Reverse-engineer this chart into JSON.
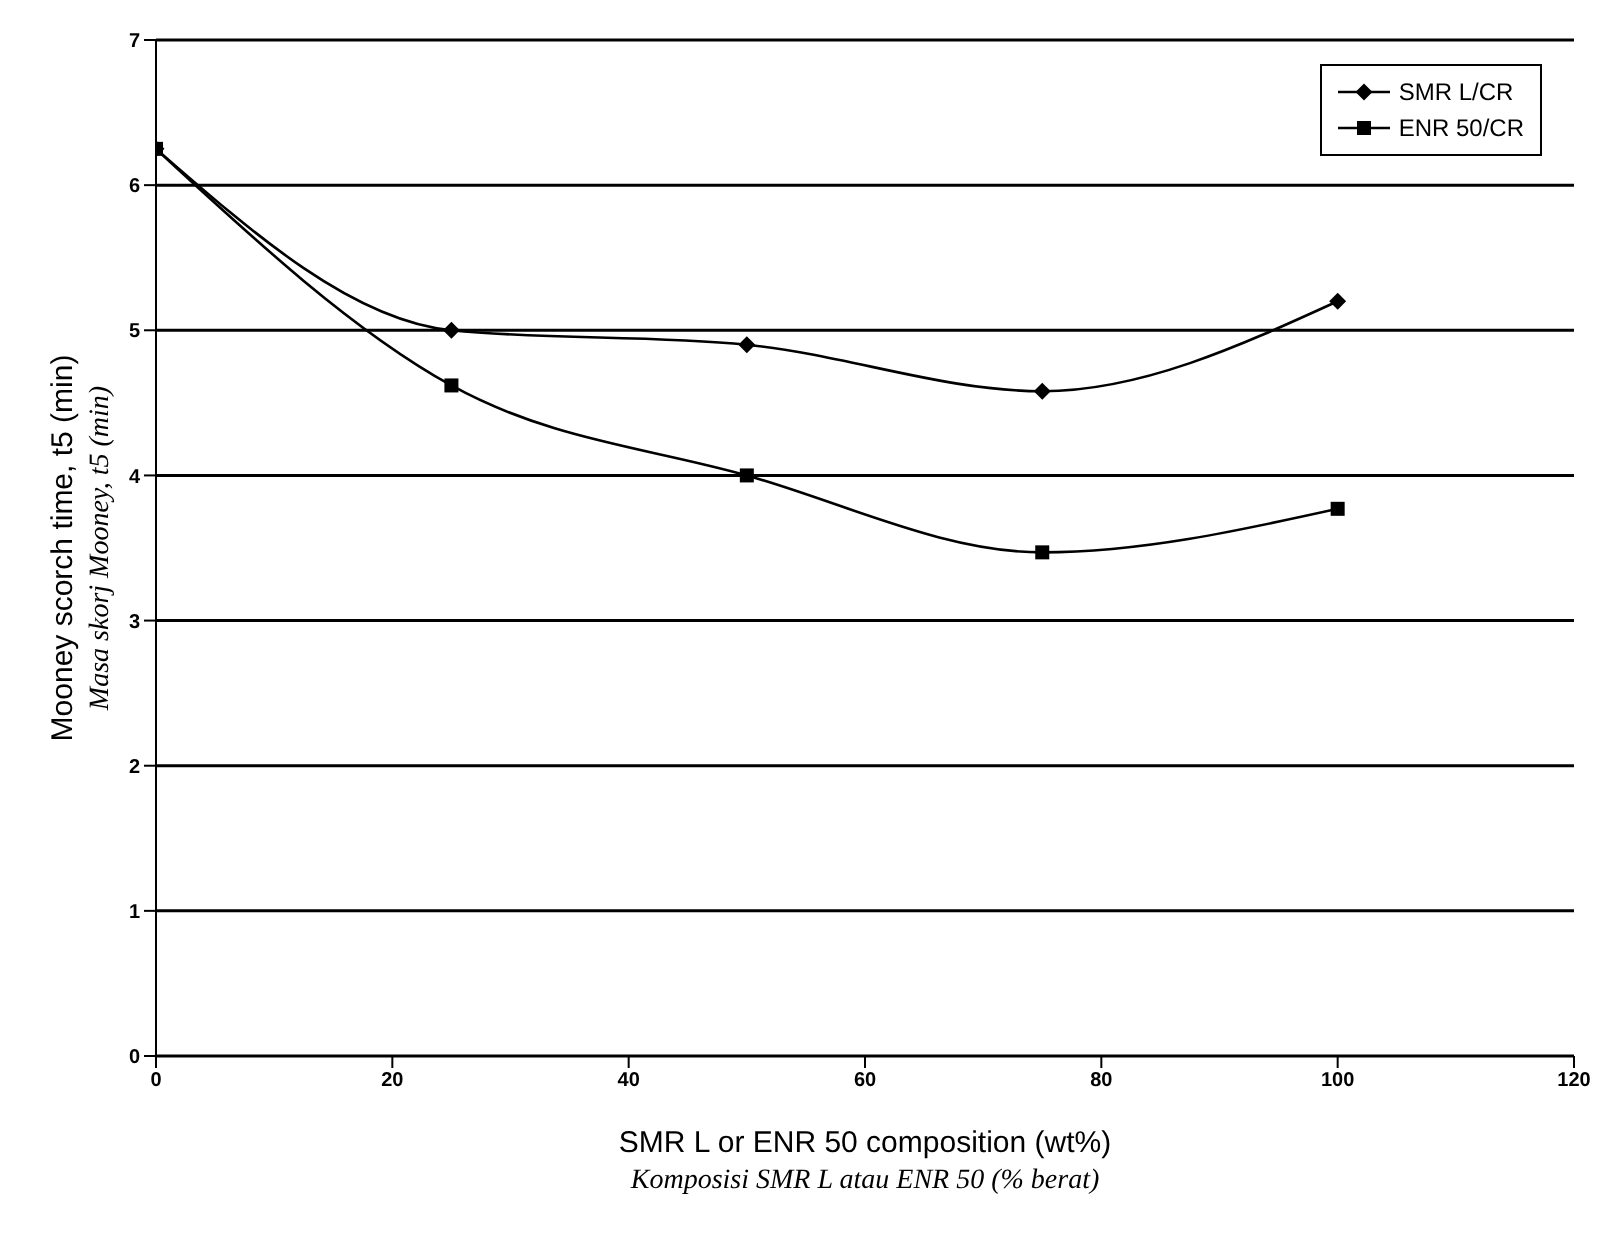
{
  "chart_data": {
    "type": "line",
    "xlabel": "SMR L or ENR 50 composition (wt%)\nKomposisi SMR L atau ENR 50 (% berat)",
    "ylabel": "Mooney scorch time, t5 (min)\nMasa skorj Mooney, t5 (min)",
    "x": [
      0,
      25,
      50,
      75,
      100
    ],
    "series": [
      {
        "name": "SMR L/CR",
        "color": "#000000",
        "marker": "diamond",
        "values": [
          6.25,
          5.0,
          4.9,
          4.58,
          5.2
        ]
      },
      {
        "name": "ENR 50/CR",
        "color": "#000000",
        "marker": "square",
        "values": [
          6.25,
          4.62,
          4.0,
          3.47,
          3.77
        ]
      }
    ],
    "xlim": [
      0,
      120
    ],
    "xticks": [
      0,
      20,
      40,
      60,
      80,
      100,
      120
    ],
    "ylim": [
      0,
      7
    ],
    "yticks": [
      0,
      1,
      2,
      3,
      4,
      5,
      6,
      7
    ],
    "grid": "y",
    "legend": "top right",
    "line_style": "solid"
  }
}
